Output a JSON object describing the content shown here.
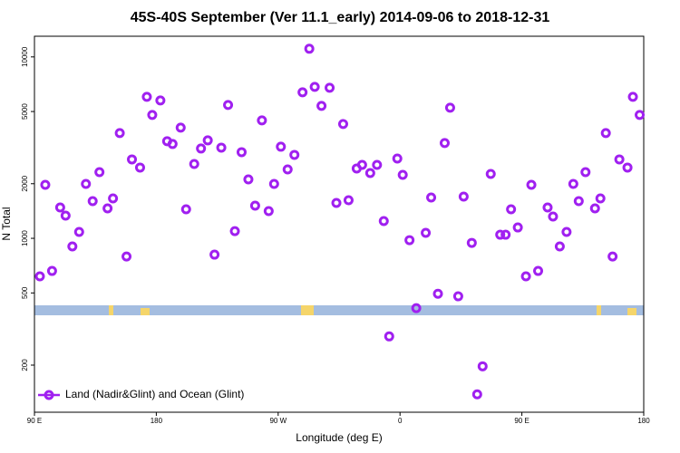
{
  "chart_data": {
    "type": "scatter",
    "title": "45S-40S September (Ver 11.1_early)   2014-09-06 to 2018-12-31",
    "x_label": "Longitude (deg E)",
    "y_label": "N Total",
    "log_y": true,
    "legend": "bottom-left",
    "xlim": [
      90,
      540
    ],
    "xticks": [
      {
        "value": 90,
        "label": "90 E"
      },
      180,
      {
        "value": 270,
        "label": "90 W"
      },
      {
        "value": 360,
        "label": "0"
      },
      {
        "value": 450,
        "label": "90 E"
      },
      {
        "value": 540,
        "label": "180"
      }
    ],
    "ylim": [
      110,
      13000
    ],
    "yticks": [
      200,
      500,
      1000,
      2000,
      5000,
      10000
    ],
    "series": [
      {
        "name": "Land (Nadir&Glint) and Ocean (Glint)",
        "color": "#a020f0",
        "x": [
          94,
          98,
          103,
          109,
          113,
          118,
          123,
          128,
          133,
          138,
          144,
          148,
          153,
          158,
          162,
          168,
          173,
          177,
          183,
          188,
          192,
          198,
          202,
          208,
          213,
          218,
          223,
          228,
          233,
          238,
          243,
          248,
          253,
          258,
          263,
          267,
          272,
          277,
          282,
          288,
          293,
          297,
          302,
          308,
          313,
          318,
          322,
          328,
          332,
          338,
          343,
          348,
          352,
          358,
          362,
          367,
          372,
          379,
          383,
          388,
          393,
          397,
          403,
          407,
          413,
          417,
          421,
          427,
          434,
          438,
          442,
          447,
          453,
          457,
          462,
          469,
          473,
          478,
          483,
          488,
          492,
          497,
          504,
          508,
          512,
          517,
          522,
          528,
          532,
          537
        ],
        "values": [
          617,
          1972,
          661,
          1479,
          1334,
          902,
          1084,
          1995,
          1603,
          2317,
          1462,
          1660,
          3802,
          794,
          2723,
          2455,
          6026,
          4786,
          5754,
          3428,
          3311,
          4074,
          1445,
          2570,
          3126,
          3467,
          813,
          3162,
          5433,
          1096,
          2985,
          2113,
          1514,
          4467,
          1413,
          1995,
          3199,
          2399,
          2884,
          6383,
          11092,
          6839,
          5370,
          6761,
          1567,
          4266,
          1622,
          2427,
          2541,
          2291,
          2541,
          1245,
          288,
          2754,
          2239,
          977,
          412,
          1072,
          1679,
          495,
          3350,
          5248,
          479,
          1698,
          944,
          138,
          197,
          2265,
          1047,
          1047,
          1445,
          1148,
          617,
          1972,
          661,
          1479,
          1318,
          902,
          1084,
          1995,
          1603,
          2317,
          1462,
          1660,
          3802,
          794,
          2723,
          2455,
          6026,
          4786
        ]
      }
    ]
  }
}
